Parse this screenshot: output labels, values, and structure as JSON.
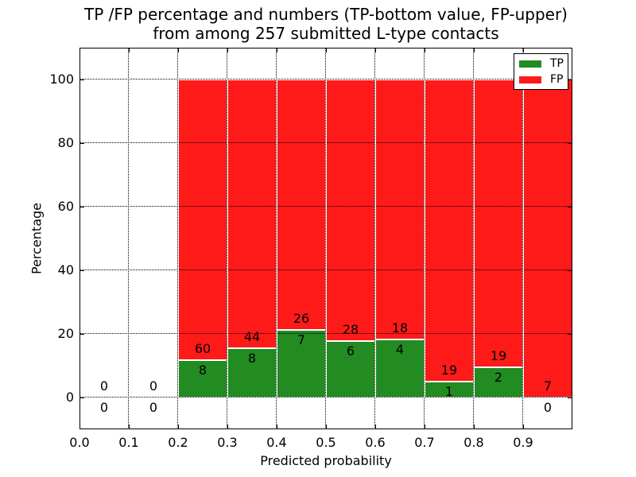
{
  "title": {
    "line1": "TP /FP percentage and numbers (TP-bottom value, FP-upper)",
    "line2": "from among 257 submitted L-type contacts"
  },
  "chart_data": {
    "type": "bar",
    "stacked": true,
    "normalized_to": 100,
    "title": "TP /FP percentage and numbers (TP-bottom value, FP-upper)\nfrom among 257 submitted L-type contacts",
    "xlabel": "Predicted probability",
    "ylabel": "Percentage",
    "xlim": [
      0.0,
      1.0
    ],
    "ylim": [
      -10,
      110
    ],
    "xticks": [
      "0.0",
      "0.1",
      "0.2",
      "0.3",
      "0.4",
      "0.5",
      "0.6",
      "0.7",
      "0.8",
      "0.9"
    ],
    "yticks": [
      0,
      20,
      40,
      60,
      80,
      100
    ],
    "grid": "dotted",
    "bin_width": 0.1,
    "total_contacts": 257,
    "series": [
      {
        "name": "TP",
        "color": "#228b22"
      },
      {
        "name": "FP",
        "color": "#ff1a1a"
      }
    ],
    "bins": [
      {
        "x_start": 0.0,
        "tp": 0,
        "fp": 0,
        "tp_pct": 0
      },
      {
        "x_start": 0.1,
        "tp": 0,
        "fp": 0,
        "tp_pct": 0
      },
      {
        "x_start": 0.2,
        "tp": 8,
        "fp": 60,
        "tp_pct": 11.76
      },
      {
        "x_start": 0.3,
        "tp": 8,
        "fp": 44,
        "tp_pct": 15.38
      },
      {
        "x_start": 0.4,
        "tp": 7,
        "fp": 26,
        "tp_pct": 21.21
      },
      {
        "x_start": 0.5,
        "tp": 6,
        "fp": 28,
        "tp_pct": 17.65
      },
      {
        "x_start": 0.6,
        "tp": 4,
        "fp": 18,
        "tp_pct": 18.18
      },
      {
        "x_start": 0.7,
        "tp": 1,
        "fp": 19,
        "tp_pct": 5.0
      },
      {
        "x_start": 0.8,
        "tp": 2,
        "fp": 19,
        "tp_pct": 9.52
      },
      {
        "x_start": 0.9,
        "tp": 0,
        "fp": 7,
        "tp_pct": 0
      }
    ],
    "legend": {
      "position": "upper right",
      "entries": [
        {
          "label": "TP",
          "color": "#228b22"
        },
        {
          "label": "FP",
          "color": "#ff1a1a"
        }
      ]
    }
  }
}
